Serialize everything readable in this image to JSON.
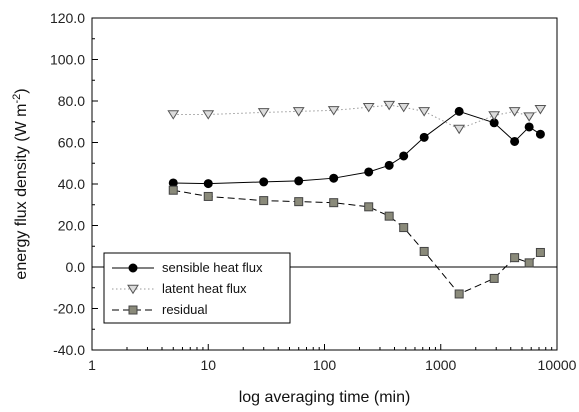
{
  "chart_data": {
    "type": "line",
    "xscale": "log",
    "xlim": [
      1,
      10000
    ],
    "ylim": [
      -40,
      120
    ],
    "x_ticks": [
      1,
      10,
      100,
      1000,
      10000
    ],
    "x_tick_labels": [
      "1",
      "10",
      "100",
      "1000",
      "10000"
    ],
    "y_ticks": [
      -40,
      -20,
      0,
      20,
      40,
      60,
      80,
      100,
      120
    ],
    "y_tick_labels": [
      "-40.0",
      "-20.0",
      "0.0",
      "20.0",
      "40.0",
      "60.0",
      "80.0",
      "100.0",
      "120.0"
    ],
    "xlabel": "log averaging time (min)",
    "ylabel_main": "energy flux density (W m",
    "ylabel_sup": "-2",
    "ylabel_end": ")",
    "zero_line": true,
    "grid": false,
    "legend_position": "lower-left",
    "series": [
      {
        "name": "sensible heat flux",
        "marker": "circle",
        "line_style": "solid",
        "color": "#000000",
        "x": [
          5,
          10,
          30,
          60,
          120,
          240,
          360,
          480,
          720,
          1440,
          2880,
          4320,
          5760,
          7200
        ],
        "y": [
          40.5,
          40.2,
          41.0,
          41.5,
          42.8,
          45.8,
          49.0,
          53.5,
          62.5,
          75.0,
          69.5,
          60.5,
          67.5,
          64.0
        ]
      },
      {
        "name": "latent heat flux",
        "marker": "triangle-down",
        "line_style": "dotted",
        "color": "#bbbbbb",
        "x": [
          5,
          10,
          30,
          60,
          120,
          240,
          360,
          480,
          720,
          1440,
          2880,
          4320,
          5760,
          7200
        ],
        "y": [
          73.5,
          73.5,
          74.5,
          75.0,
          75.5,
          77.0,
          78.0,
          77.0,
          75.0,
          66.5,
          73.0,
          75.0,
          72.5,
          76.0
        ]
      },
      {
        "name": "residual",
        "marker": "square",
        "line_style": "dashed",
        "color": "#555555",
        "x": [
          5,
          10,
          30,
          60,
          120,
          240,
          360,
          480,
          720,
          1440,
          2880,
          4320,
          5760,
          7200
        ],
        "y": [
          37.0,
          34.0,
          32.0,
          31.5,
          31.0,
          29.0,
          24.5,
          19.0,
          7.5,
          -13.0,
          -5.5,
          4.5,
          2.0,
          7.0
        ]
      }
    ]
  }
}
